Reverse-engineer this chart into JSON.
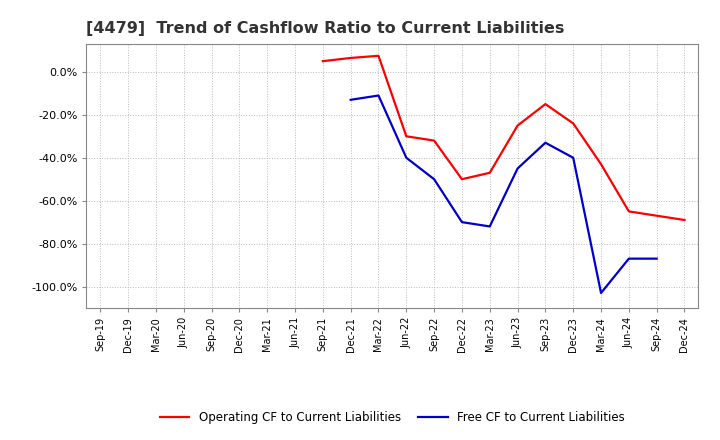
{
  "title": "[4479]  Trend of Cashflow Ratio to Current Liabilities",
  "x_labels": [
    "Sep-19",
    "Dec-19",
    "Mar-20",
    "Jun-20",
    "Sep-20",
    "Dec-20",
    "Mar-21",
    "Jun-21",
    "Sep-21",
    "Dec-21",
    "Mar-22",
    "Jun-22",
    "Sep-22",
    "Dec-22",
    "Mar-23",
    "Jun-23",
    "Sep-23",
    "Dec-23",
    "Mar-24",
    "Jun-24",
    "Sep-24",
    "Dec-24"
  ],
  "operating_cf": [
    null,
    null,
    null,
    null,
    null,
    null,
    null,
    null,
    5.0,
    6.5,
    7.5,
    -30.0,
    -32.0,
    -50.0,
    -47.0,
    -25.0,
    -15.0,
    -24.0,
    -43.0,
    -65.0,
    -67.0,
    -69.0
  ],
  "free_cf": [
    null,
    null,
    null,
    null,
    null,
    null,
    null,
    null,
    null,
    -13.0,
    -11.0,
    -40.0,
    -50.0,
    -70.0,
    -72.0,
    -45.0,
    -33.0,
    -40.0,
    -103.0,
    -87.0,
    -87.0,
    null
  ],
  "ylim": [
    -110,
    13
  ],
  "yticks": [
    0.0,
    -20.0,
    -40.0,
    -60.0,
    -80.0,
    -100.0
  ],
  "operating_color": "#FF0000",
  "free_color": "#0000CC",
  "legend_labels": [
    "Operating CF to Current Liabilities",
    "Free CF to Current Liabilities"
  ],
  "background_color": "#FFFFFF",
  "plot_bg_color": "#FFFFFF",
  "grid_color": "#AAAAAA",
  "title_fontsize": 11.5
}
